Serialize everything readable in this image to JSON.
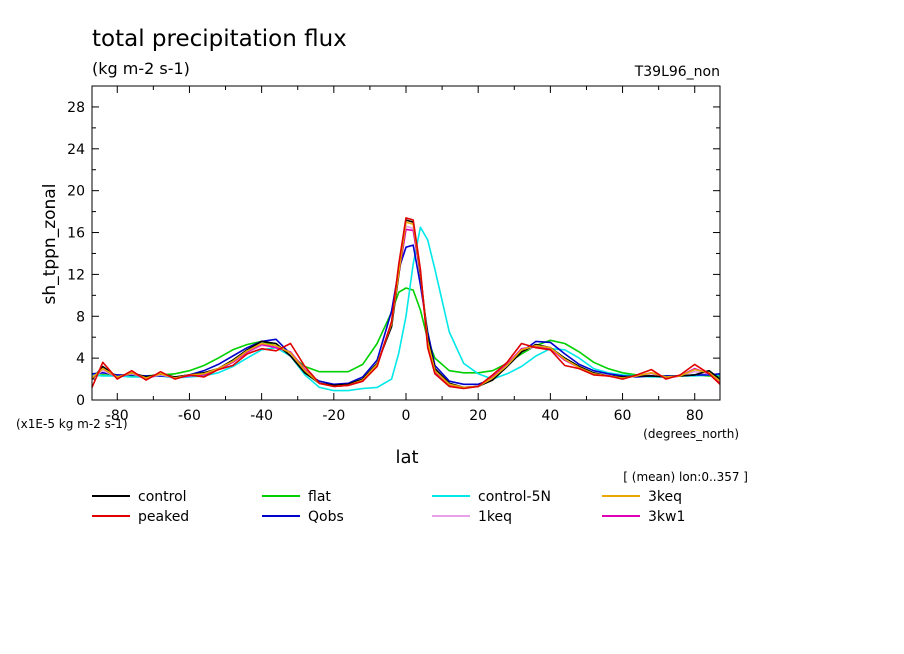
{
  "chart_data": {
    "type": "line",
    "title": "total precipitation flux",
    "units": "(kg m-2 s-1)",
    "run_label": "T39L96_non",
    "ylabel": "sh_tppn_zonal",
    "yscale_note": "(x1E-5 kg m-2 s-1)",
    "xlabel": "lat",
    "xunits": "(degrees_north)",
    "averaging_note": "[ (mean) lon:0..357 ]",
    "xlim": [
      -87,
      87
    ],
    "ylim": [
      0,
      30
    ],
    "xticks": [
      -80,
      -60,
      -40,
      -20,
      0,
      20,
      40,
      60,
      80
    ],
    "yticks": [
      0,
      4,
      8,
      12,
      16,
      20,
      24,
      28
    ],
    "grid": false,
    "legend_position": "bottom",
    "x": [
      -87,
      -84,
      -80,
      -76,
      -72,
      -68,
      -64,
      -60,
      -56,
      -52,
      -48,
      -44,
      -40,
      -36,
      -32,
      -28,
      -24,
      -20,
      -16,
      -12,
      -8,
      -4,
      -2,
      0,
      2,
      4,
      6,
      8,
      12,
      16,
      20,
      24,
      28,
      32,
      36,
      40,
      44,
      48,
      52,
      56,
      60,
      64,
      68,
      72,
      76,
      80,
      84,
      87
    ],
    "series": [
      {
        "name": "control",
        "color": "#000000",
        "values": [
          2.0,
          3.2,
          2.2,
          2.6,
          2.2,
          2.5,
          2.2,
          2.4,
          2.6,
          3.0,
          3.8,
          4.8,
          5.6,
          5.4,
          4.2,
          2.6,
          1.6,
          1.4,
          1.5,
          2.0,
          3.5,
          7.0,
          12.0,
          17.2,
          17.0,
          12.0,
          6.0,
          3.0,
          1.6,
          1.2,
          1.3,
          1.9,
          3.2,
          4.6,
          5.3,
          5.0,
          4.0,
          3.2,
          2.6,
          2.3,
          2.2,
          2.3,
          2.3,
          2.2,
          2.3,
          2.4,
          2.8,
          2.0
        ]
      },
      {
        "name": "peaked",
        "color": "#e00000",
        "values": [
          1.2,
          3.6,
          2.0,
          2.8,
          1.9,
          2.7,
          2.0,
          2.4,
          2.2,
          2.9,
          3.3,
          4.4,
          4.9,
          4.7,
          5.4,
          3.2,
          1.6,
          1.3,
          1.4,
          1.8,
          3.2,
          7.5,
          13.0,
          17.4,
          17.2,
          12.5,
          5.0,
          2.5,
          1.3,
          1.1,
          1.3,
          2.4,
          3.6,
          5.4,
          5.0,
          4.8,
          3.3,
          3.0,
          2.4,
          2.3,
          2.0,
          2.4,
          2.9,
          2.0,
          2.4,
          3.4,
          2.5,
          1.5
        ]
      },
      {
        "name": "flat",
        "color": "#00d000",
        "values": [
          2.3,
          2.4,
          2.3,
          2.3,
          2.3,
          2.4,
          2.5,
          2.8,
          3.3,
          4.0,
          4.8,
          5.3,
          5.6,
          5.2,
          4.3,
          3.2,
          2.7,
          2.7,
          2.7,
          3.4,
          5.4,
          8.4,
          10.3,
          10.7,
          10.5,
          8.6,
          5.8,
          4.0,
          2.8,
          2.6,
          2.6,
          2.8,
          3.5,
          4.4,
          5.2,
          5.7,
          5.4,
          4.6,
          3.6,
          3.0,
          2.6,
          2.4,
          2.3,
          2.3,
          2.3,
          2.4,
          2.3,
          2.3
        ]
      },
      {
        "name": "Qobs",
        "color": "#0000cc",
        "values": [
          2.5,
          2.6,
          2.4,
          2.4,
          2.3,
          2.3,
          2.2,
          2.4,
          2.8,
          3.4,
          4.2,
          5.0,
          5.6,
          5.8,
          4.4,
          2.6,
          1.8,
          1.5,
          1.6,
          2.2,
          3.8,
          8.5,
          12.5,
          14.6,
          14.8,
          11.0,
          6.5,
          3.3,
          1.8,
          1.5,
          1.5,
          2.0,
          3.2,
          4.6,
          5.6,
          5.5,
          4.4,
          3.4,
          2.8,
          2.5,
          2.3,
          2.2,
          2.3,
          2.3,
          2.3,
          2.4,
          2.4,
          2.5
        ]
      },
      {
        "name": "control-5N",
        "color": "#00e8e8",
        "values": [
          2.4,
          2.3,
          2.3,
          2.2,
          2.2,
          2.3,
          2.1,
          2.2,
          2.3,
          2.6,
          3.2,
          4.0,
          4.8,
          5.0,
          4.2,
          2.4,
          1.2,
          0.9,
          0.9,
          1.1,
          1.2,
          2.0,
          4.5,
          8.0,
          13.0,
          16.5,
          15.3,
          12.5,
          6.5,
          3.5,
          2.5,
          2.0,
          2.5,
          3.2,
          4.2,
          4.9,
          4.8,
          4.0,
          3.0,
          2.6,
          2.4,
          2.3,
          2.2,
          2.2,
          2.3,
          2.3,
          2.4,
          2.4
        ]
      },
      {
        "name": "1keq",
        "color": "#e8a0e8",
        "values": [
          2.2,
          2.8,
          2.2,
          2.5,
          2.1,
          2.4,
          2.1,
          2.3,
          2.5,
          2.9,
          3.6,
          4.5,
          5.2,
          5.1,
          4.4,
          2.8,
          1.6,
          1.3,
          1.4,
          1.9,
          3.4,
          7.5,
          12.5,
          16.6,
          16.4,
          12.0,
          5.5,
          2.8,
          1.5,
          1.2,
          1.3,
          2.1,
          3.3,
          4.7,
          5.1,
          4.9,
          3.8,
          3.1,
          2.5,
          2.3,
          2.1,
          2.3,
          2.5,
          2.2,
          2.3,
          2.7,
          2.5,
          1.9
        ]
      },
      {
        "name": "3keq",
        "color": "#e8a800",
        "values": [
          2.1,
          3.0,
          2.2,
          2.6,
          2.1,
          2.5,
          2.1,
          2.4,
          2.5,
          3.0,
          3.7,
          4.7,
          5.4,
          5.2,
          4.5,
          2.8,
          1.6,
          1.3,
          1.4,
          1.9,
          3.4,
          7.3,
          12.2,
          17.0,
          16.8,
          12.2,
          5.6,
          2.8,
          1.5,
          1.2,
          1.3,
          2.1,
          3.3,
          4.8,
          5.2,
          5.0,
          3.9,
          3.1,
          2.5,
          2.3,
          2.1,
          2.3,
          2.6,
          2.2,
          2.3,
          2.9,
          2.6,
          1.8
        ]
      },
      {
        "name": "3kw1",
        "color": "#e000b8",
        "values": [
          2.0,
          3.0,
          2.1,
          2.6,
          2.0,
          2.5,
          2.1,
          2.3,
          2.4,
          2.9,
          3.6,
          4.6,
          5.3,
          5.0,
          4.6,
          2.9,
          1.6,
          1.3,
          1.4,
          1.8,
          3.3,
          7.2,
          12.0,
          16.3,
          16.2,
          12.0,
          5.4,
          2.7,
          1.4,
          1.2,
          1.3,
          2.2,
          3.4,
          4.9,
          5.1,
          4.9,
          3.8,
          3.1,
          2.5,
          2.3,
          2.1,
          2.3,
          2.6,
          2.1,
          2.3,
          3.0,
          2.5,
          1.7
        ]
      }
    ]
  }
}
